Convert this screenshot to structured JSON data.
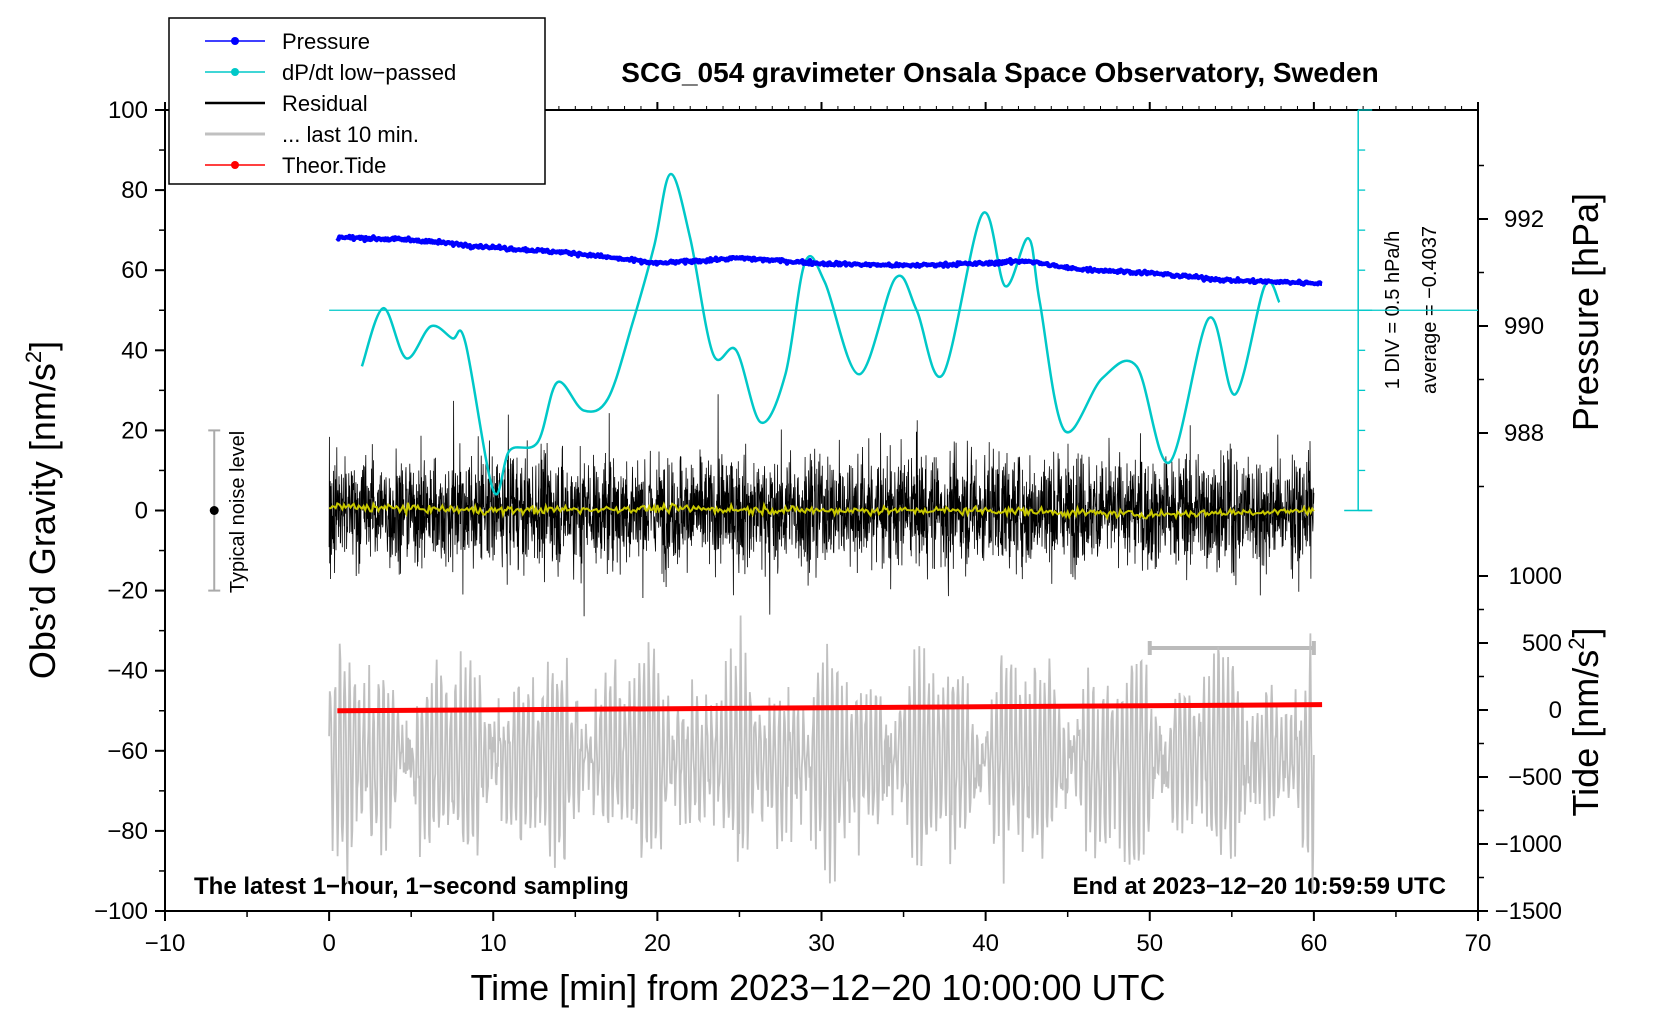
{
  "chart_data": {
    "type": "line",
    "title": "SCG_054 gravimeter Onsala Space Observatory, Sweden",
    "xlabel": "Time [min] from 2023−12−20 10:00:00 UTC",
    "ylabel_left": "Obs’d Gravity [nm/s²]",
    "ylabel_left_main": "Obs’d Gravity [nm/s",
    "ylabel_left_sup": "2",
    "ylabel_left_tail": "]",
    "ylabel_right_pressure": "Pressure [hPa]",
    "ylabel_right_tide_main": "Tide [nm/s",
    "ylabel_right_tide_sup": "2",
    "ylabel_right_tide_tail": "]",
    "xlim": [
      -10,
      70
    ],
    "ylim": [
      -100,
      100
    ],
    "x_ticks": [
      "−10",
      "0",
      "10",
      "20",
      "30",
      "40",
      "50",
      "60",
      "70"
    ],
    "x_tick_values": [
      -10,
      0,
      10,
      20,
      30,
      40,
      50,
      60,
      70
    ],
    "y_ticks": [
      "100",
      "80",
      "60",
      "40",
      "20",
      "0",
      "−20",
      "−40",
      "−60",
      "−80",
      "−100"
    ],
    "y_tick_values": [
      100,
      80,
      60,
      40,
      20,
      0,
      -20,
      -40,
      -60,
      -80,
      -100
    ],
    "pressure_axis": {
      "ticks": [
        "992",
        "990",
        "988"
      ],
      "tick_values": [
        992,
        990,
        988
      ],
      "range_hpa": [
        986.0,
        994.0
      ]
    },
    "tide_axis": {
      "ticks": [
        "1000",
        "500",
        "0",
        "−500",
        "−1000",
        "−1500"
      ],
      "tick_values": [
        1000,
        500,
        0,
        -500,
        -1000,
        -1500
      ],
      "range": [
        -1500,
        1000
      ]
    },
    "series": [
      {
        "name": "Pressure",
        "color": "#0000ff",
        "units": "hPa",
        "x": [
          0.5,
          5,
          10,
          15,
          20,
          25,
          30,
          35,
          40,
          42.5,
          45,
          50,
          55,
          60.5
        ],
        "values": [
          991.66,
          991.61,
          991.47,
          991.36,
          991.17,
          991.27,
          991.17,
          991.13,
          991.17,
          991.22,
          991.08,
          990.99,
          990.85,
          990.8
        ]
      },
      {
        "name": "dP/dt low−passed",
        "color": "#00c8c8",
        "units": "nm/s² (display)",
        "x": [
          2,
          3.3,
          4.7,
          6.2,
          7.5,
          8.3,
          10,
          11,
          12.7,
          13.9,
          15.5,
          17,
          18.5,
          19.8,
          20.8,
          22,
          23.4,
          24.8,
          26.3,
          27.8,
          29,
          30.2,
          32.3,
          34.5,
          35.8,
          37.4,
          39.8,
          41.2,
          42.6,
          43.3,
          44.8,
          47.1,
          49.2,
          51.2,
          53.6,
          55.2,
          57,
          57.9
        ],
        "values": [
          36,
          50.5,
          38,
          46,
          43,
          42,
          5,
          15,
          17,
          32,
          25,
          28,
          47,
          66,
          84,
          68,
          39,
          40,
          22,
          34,
          62,
          57,
          34,
          58,
          50,
          34,
          74,
          56,
          68,
          52,
          20,
          33,
          36,
          12,
          48,
          29,
          56,
          52
        ]
      },
      {
        "name": "Residual",
        "color": "#000000",
        "units": "nm/s²",
        "x_range": [
          0,
          60
        ],
        "envelope_values": [
          -40,
          40
        ],
        "typical_amplitude": 18
      },
      {
        "name": "... last 10 min.",
        "color": "#c0c0c0",
        "units": "nm/s²",
        "x_range": [
          50,
          60
        ],
        "center_value": -62,
        "amplitude": 22
      },
      {
        "name": "Theor.Tide",
        "color": "#ff0000",
        "units": "nm/s² (tide axis)",
        "x": [
          0.5,
          60.5
        ],
        "values": [
          -6,
          40
        ]
      },
      {
        "name": "Residual smoothed",
        "color": "#c8c800",
        "units": "nm/s²",
        "x": [
          0,
          10,
          20,
          30,
          40,
          50,
          60
        ],
        "values": [
          1,
          0,
          0.5,
          0,
          0,
          -1,
          0
        ]
      }
    ],
    "legend": {
      "placement": "top-left",
      "entries": [
        "Pressure",
        "dP/dt low−passed",
        "Residual",
        "... last 10 min.",
        "Theor.Tide"
      ]
    },
    "annotations": {
      "typical_noise": "Typical noise level",
      "typical_noise_center": 0,
      "typical_noise_half_range": 20,
      "dpdt_scale": "1 DIV = 0.5 hPa/h",
      "dpdt_average": "average = −0.4037",
      "dpdt_zero_line_value": 50,
      "bottom_left": "The latest 1−hour, 1−second sampling",
      "bottom_right": "End at 2023−12−20 10:59:59 UTC",
      "last10_range_min": [
        50,
        60
      ]
    },
    "colors": {
      "pressure": "#0000ff",
      "dpdt": "#00c8c8",
      "residual": "#000000",
      "last10": "#c0c0c0",
      "tide": "#ff0000",
      "smooth": "#c8c800"
    }
  }
}
